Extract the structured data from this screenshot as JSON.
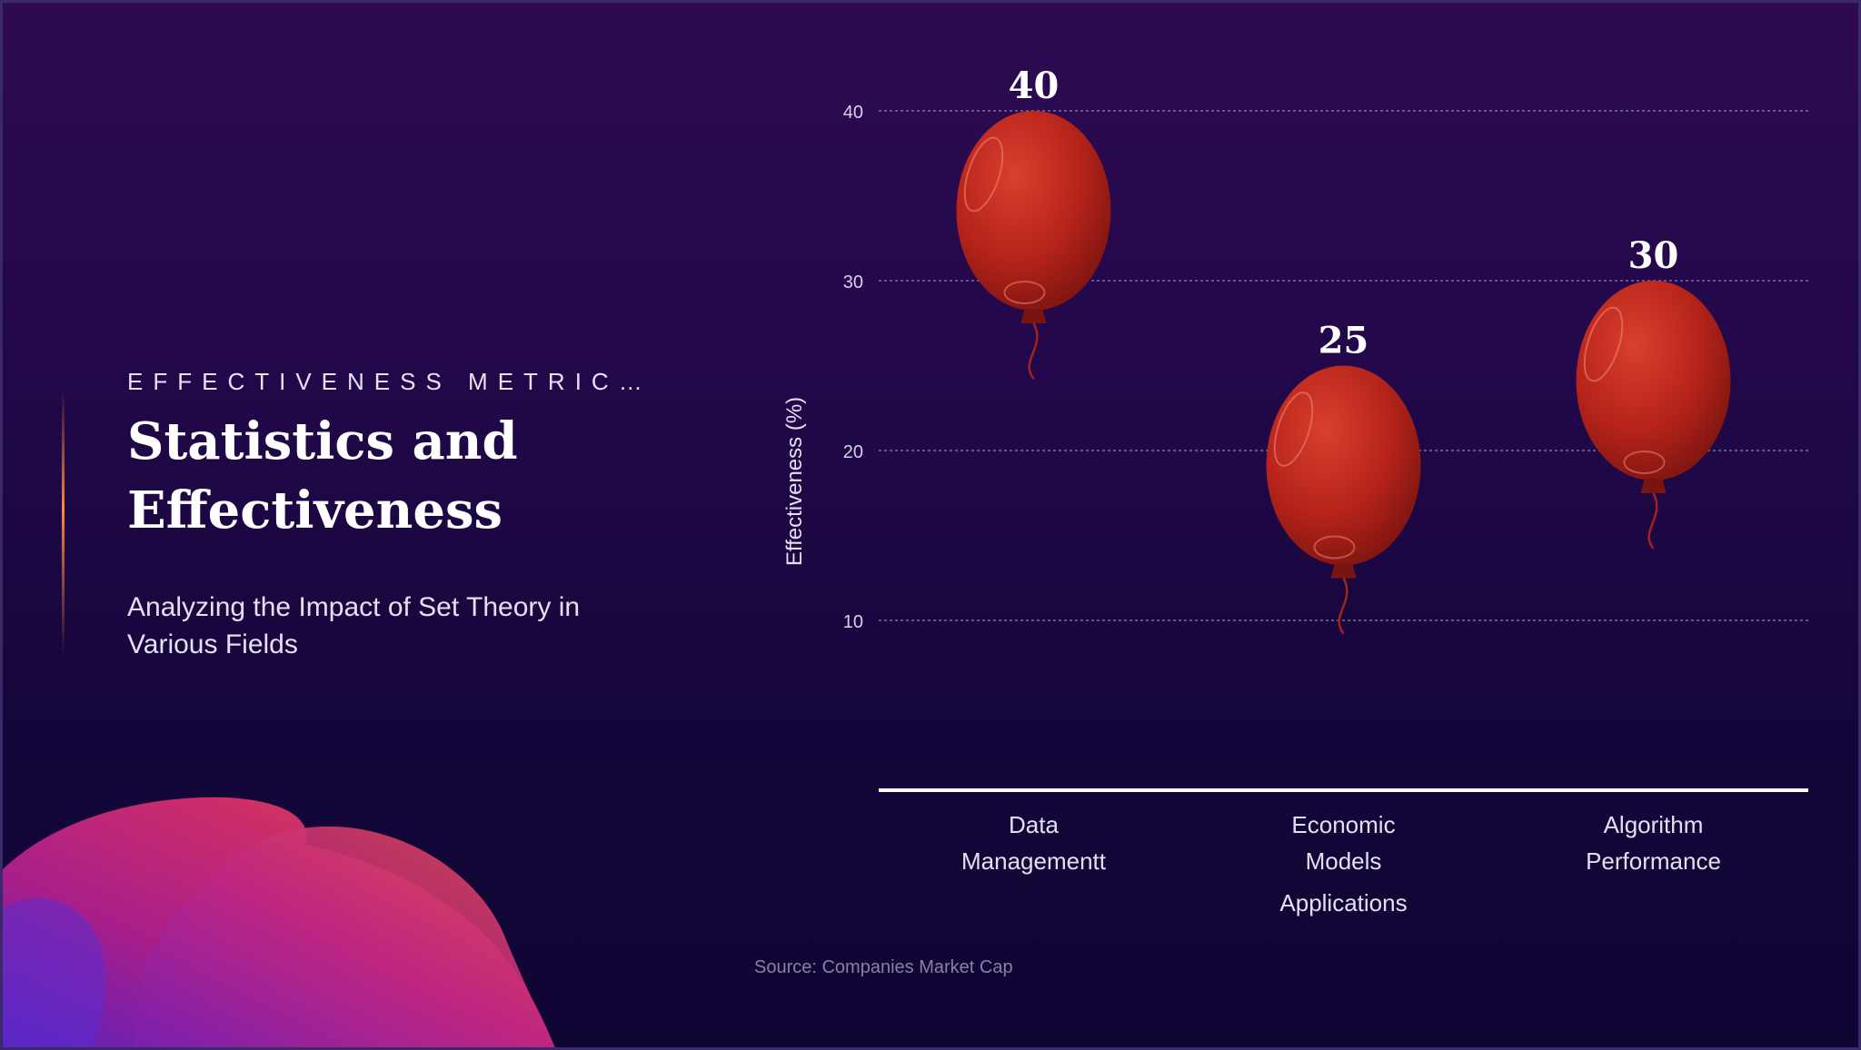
{
  "slide": {
    "eyebrow": "EFFECTIVENESS METRIC…",
    "title_line1": "Statistics and",
    "title_line2": "Effectiveness",
    "subtitle": "Analyzing the Impact of Set Theory in Various Fields",
    "source": "Source: Companies Market Cap"
  },
  "colors": {
    "balloon": "#b8241a",
    "balloon_dark": "#7a1410",
    "gridline": "#7d6e9e",
    "axis": "#ffffff"
  },
  "chart_data": {
    "type": "bar",
    "title": "",
    "xlabel": "",
    "ylabel": "Effectiveness (%)",
    "ylim": [
      0,
      40
    ],
    "yticks": [
      10,
      20,
      30,
      40
    ],
    "grid": true,
    "categories": [
      [
        "Data",
        "Managementt"
      ],
      [
        "Economic",
        "Models",
        "Applications"
      ],
      [
        "Algorithm",
        "Performance"
      ]
    ],
    "values": [
      40,
      25,
      30
    ],
    "data_labels": [
      "40",
      "25",
      "30"
    ]
  }
}
